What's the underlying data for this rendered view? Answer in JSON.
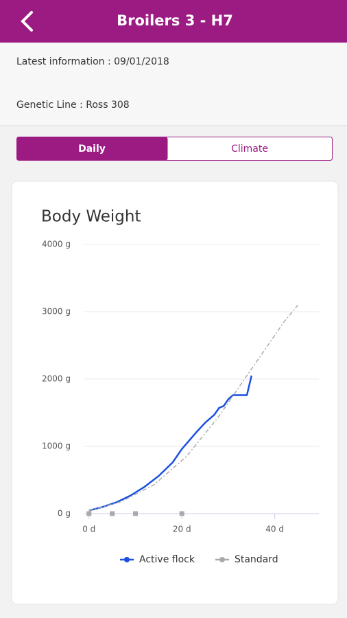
{
  "header": {
    "title": "Broilers 3 - H7"
  },
  "info": {
    "latest": "Latest information : 09/01/2018",
    "genetic_line": "Genetic Line : Ross 308"
  },
  "tabs": [
    "Daily",
    "Climate"
  ],
  "chart_data": {
    "type": "line",
    "title": "Body Weight",
    "xlim": [
      -1,
      49.5
    ],
    "xticks": [
      {
        "value": 0,
        "label": "0 d"
      },
      {
        "value": 20,
        "label": "20 d"
      },
      {
        "value": 40,
        "label": "40 d"
      }
    ],
    "ylim": [
      0,
      4000
    ],
    "yticks": [
      {
        "value": 0,
        "label": "0 g"
      },
      {
        "value": 1000,
        "label": "1000 g"
      },
      {
        "value": 2000,
        "label": "2000 g"
      },
      {
        "value": 3000,
        "label": "3000 g"
      },
      {
        "value": 4000,
        "label": "4000 g"
      }
    ],
    "grid": true,
    "series": [
      {
        "name": "Active flock",
        "color": "#1a4fe0",
        "dashed": false,
        "x": [
          0,
          3,
          6,
          9,
          12,
          15,
          18,
          20,
          21,
          23,
          25,
          27,
          28,
          29,
          30,
          31,
          34,
          35
        ],
        "values": [
          45,
          100,
          170,
          270,
          400,
          560,
          760,
          960,
          1040,
          1200,
          1350,
          1470,
          1570,
          1600,
          1700,
          1760,
          1760,
          2050
        ]
      },
      {
        "name": "Standard",
        "color": "#aaaaaa",
        "dashed": true,
        "x": [
          0,
          7,
          14,
          21,
          28,
          35,
          42,
          45
        ],
        "values": [
          42,
          180,
          430,
          850,
          1450,
          2150,
          2850,
          3100
        ]
      },
      {
        "color": "#aaaaaa",
        "marker": "square",
        "x": [
          0,
          5,
          10,
          20
        ],
        "values": [
          0,
          0,
          0,
          0
        ]
      }
    ]
  }
}
